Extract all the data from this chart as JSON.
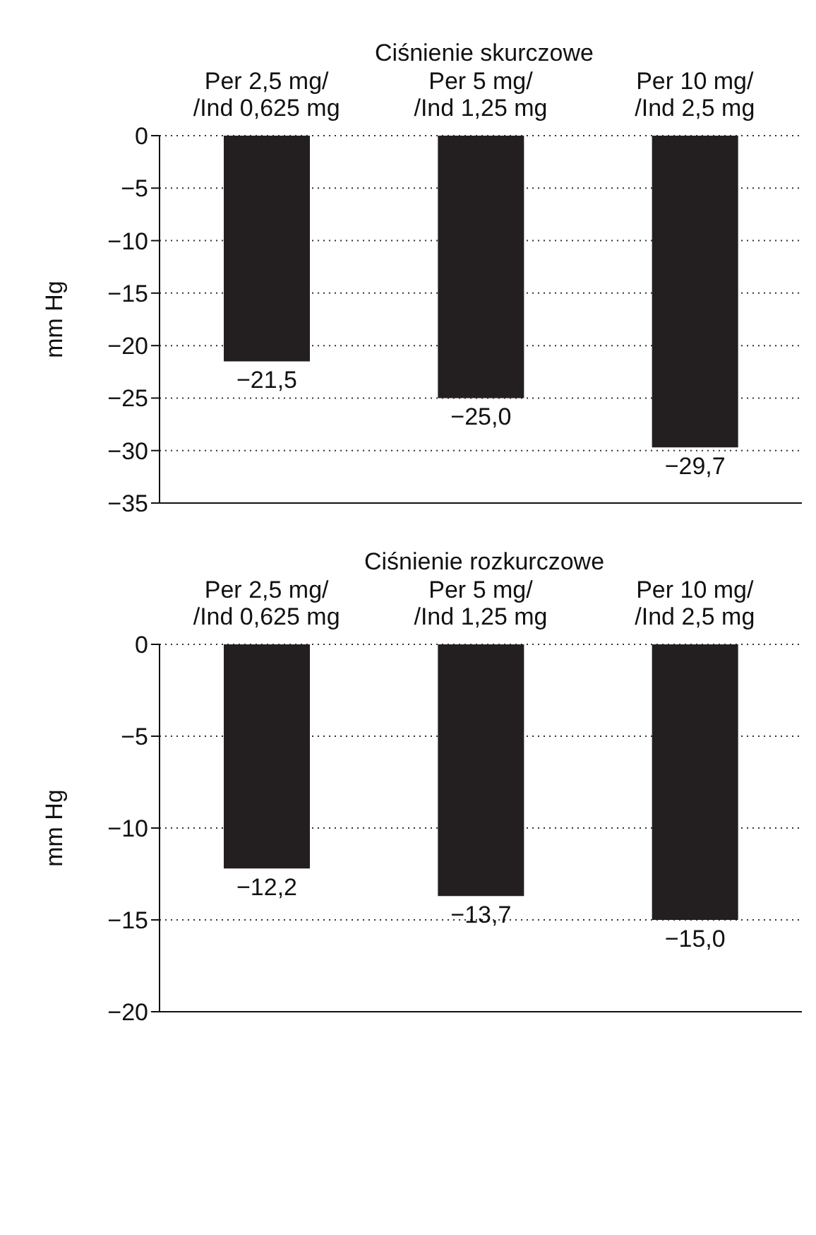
{
  "chart_data": [
    {
      "type": "bar",
      "title": "Ciśnienie skurczowe",
      "ylabel": "mm Hg",
      "categories": [
        "Per 2,5 mg/\n/Ind 0,625 mg",
        "Per 5 mg/\n/Ind 1,25 mg",
        "Per 10 mg/\n/Ind 2,5 mg"
      ],
      "values": [
        -21.5,
        -25.0,
        -29.7
      ],
      "color": "#231f20",
      "value_labels": [
        "−21,5",
        "−25,0",
        "−29,7"
      ],
      "ylim": [
        -35,
        0
      ],
      "yticks": [
        {
          "value": 0,
          "label": "0"
        },
        {
          "value": -5,
          "label": "−5"
        },
        {
          "value": -10,
          "label": "−10"
        },
        {
          "value": -15,
          "label": "−15"
        },
        {
          "value": -20,
          "label": "−20"
        },
        {
          "value": -25,
          "label": "−25"
        },
        {
          "value": -30,
          "label": "−30"
        },
        {
          "value": -35,
          "label": "−35"
        }
      ],
      "grid": "y"
    },
    {
      "type": "bar",
      "title": "Ciśnienie rozkurczowe",
      "ylabel": "mm Hg",
      "categories": [
        "Per 2,5 mg/\n/Ind 0,625 mg",
        "Per 5 mg/\n/Ind 1,25 mg",
        "Per 10 mg/\n/Ind 2,5 mg"
      ],
      "values": [
        -12.2,
        -13.7,
        -15.0
      ],
      "color": "#231f20",
      "value_labels": [
        "−12,2",
        "−13,7",
        "−15,0"
      ],
      "ylim": [
        -20,
        0
      ],
      "yticks": [
        {
          "value": 0,
          "label": "0"
        },
        {
          "value": -5,
          "label": "−5"
        },
        {
          "value": -10,
          "label": "−10"
        },
        {
          "value": -15,
          "label": "−15"
        },
        {
          "value": -20,
          "label": "−20"
        }
      ],
      "grid": "y"
    }
  ]
}
